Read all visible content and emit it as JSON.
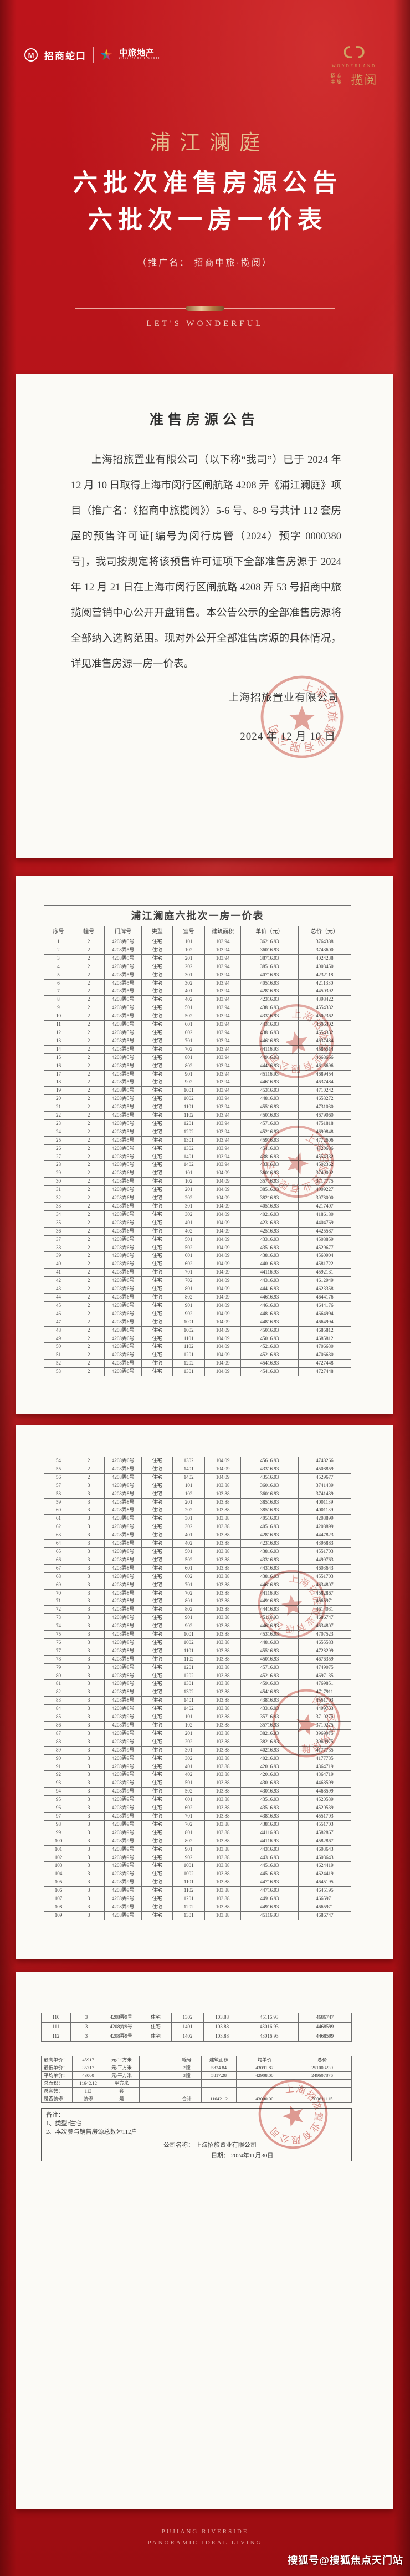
{
  "header": {
    "cm_mark": "M",
    "cm_name": "招商蛇口",
    "ctg_name": "中旅地产",
    "ctg_sub": "CTG REAL ESTATE",
    "right_wordmark": "WONDERLAND",
    "right_cn_a": "招商",
    "right_cn_b": "中旅",
    "right_name": "揽阅",
    "gold_color": "#cfa263"
  },
  "hero": {
    "project_name": "浦江澜庭",
    "line1": "六批次准售房源公告",
    "line2": "六批次一房一价表",
    "promo_note": "（推广名： 招商中旅·揽阅）",
    "slogan": "LET'S WONDERFUL",
    "gold_color": "#e5bd8e"
  },
  "announcement": {
    "title": "准售房源公告",
    "body": "上海招旅置业有限公司（以下称“我司”）已于 2024 年 12 月 10 日取得上海市闵行区闸航路 4208 弄《浦江澜庭》项目（推广名：《招商中旅揽阅》）5-6 号、8-9 号共计 112 套房屋的预售许可证[编号为闵行房管（2024）预字 0000380 号]，我司按规定将该预售许可证项下全部准售房源于 2024 年 12 月 21 日在上海市闵行区闸航路 4208 弄 53 号招商中旅揽阅营销中心公开开盘销售。本公告公示的全部准售房源将全部纳入选购范围。现对外公开全部准售房源的具体情况，详见准售房源一房一价表。",
    "signature": "上海招旅置业有限公司",
    "date": "2024 年 12 月 10 日"
  },
  "price_table": {
    "title": "浦江澜庭六批次一房一价表",
    "columns": [
      "序号",
      "幢号",
      "门牌号",
      "类型",
      "室号",
      "建筑面积",
      "单价（元）",
      "总价（元）"
    ],
    "rows": [
      [
        "1",
        "2",
        "4208弄5号",
        "住宅",
        "101",
        "103.94",
        "36216.93",
        "3764388"
      ],
      [
        "2",
        "2",
        "4208弄5号",
        "住宅",
        "102",
        "103.94",
        "36016.93",
        "3743600"
      ],
      [
        "3",
        "2",
        "4208弄5号",
        "住宅",
        "201",
        "103.94",
        "38716.93",
        "4024238"
      ],
      [
        "4",
        "2",
        "4208弄5号",
        "住宅",
        "202",
        "103.94",
        "38516.93",
        "4003450"
      ],
      [
        "5",
        "2",
        "4208弄5号",
        "住宅",
        "301",
        "103.94",
        "40716.93",
        "4232118"
      ],
      [
        "6",
        "2",
        "4208弄5号",
        "住宅",
        "302",
        "103.94",
        "40516.93",
        "4211330"
      ],
      [
        "7",
        "2",
        "4208弄5号",
        "住宅",
        "401",
        "103.94",
        "42816.93",
        "4450392"
      ],
      [
        "8",
        "2",
        "4208弄5号",
        "住宅",
        "402",
        "103.94",
        "42316.93",
        "4398422"
      ],
      [
        "9",
        "2",
        "4208弄5号",
        "住宅",
        "501",
        "103.94",
        "43816.93",
        "4554332"
      ],
      [
        "10",
        "2",
        "4208弄5号",
        "住宅",
        "502",
        "103.94",
        "43316.93",
        "4502362"
      ],
      [
        "11",
        "2",
        "4208弄5号",
        "住宅",
        "601",
        "103.94",
        "44316.93",
        "4606302"
      ],
      [
        "12",
        "2",
        "4208弄5号",
        "住宅",
        "602",
        "103.94",
        "43816.93",
        "4554332"
      ],
      [
        "13",
        "2",
        "4208弄5号",
        "住宅",
        "701",
        "103.94",
        "44616.93",
        "4637484"
      ],
      [
        "14",
        "2",
        "4208弄5号",
        "住宅",
        "702",
        "103.94",
        "44116.93",
        "4585514"
      ],
      [
        "15",
        "2",
        "4208弄5号",
        "住宅",
        "801",
        "103.94",
        "44916.93",
        "4668666"
      ],
      [
        "16",
        "2",
        "4208弄5号",
        "住宅",
        "802",
        "103.94",
        "44416.93",
        "4616696"
      ],
      [
        "17",
        "2",
        "4208弄5号",
        "住宅",
        "901",
        "103.94",
        "45116.93",
        "4689454"
      ],
      [
        "18",
        "2",
        "4208弄5号",
        "住宅",
        "902",
        "103.94",
        "44616.93",
        "4637484"
      ],
      [
        "19",
        "2",
        "4208弄5号",
        "住宅",
        "1001",
        "103.94",
        "45316.93",
        "4710242"
      ],
      [
        "20",
        "2",
        "4208弄5号",
        "住宅",
        "1002",
        "103.94",
        "44816.93",
        "4658272"
      ],
      [
        "21",
        "2",
        "4208弄5号",
        "住宅",
        "1101",
        "103.94",
        "45516.93",
        "4731030"
      ],
      [
        "22",
        "2",
        "4208弄5号",
        "住宅",
        "1102",
        "103.94",
        "45016.93",
        "4679060"
      ],
      [
        "23",
        "2",
        "4208弄5号",
        "住宅",
        "1201",
        "103.94",
        "45716.93",
        "4751818"
      ],
      [
        "24",
        "2",
        "4208弄5号",
        "住宅",
        "1202",
        "103.94",
        "45216.93",
        "4699848"
      ],
      [
        "25",
        "2",
        "4208弄5号",
        "住宅",
        "1301",
        "103.94",
        "45916.93",
        "4772606"
      ],
      [
        "26",
        "2",
        "4208弄5号",
        "住宅",
        "1302",
        "103.94",
        "45416.93",
        "4720636"
      ],
      [
        "27",
        "2",
        "4208弄5号",
        "住宅",
        "1401",
        "103.94",
        "43816.93",
        "4554332"
      ],
      [
        "28",
        "2",
        "4208弄5号",
        "住宅",
        "1402",
        "103.94",
        "43316.93",
        "4502362"
      ],
      [
        "29",
        "2",
        "4208弄6号",
        "住宅",
        "101",
        "104.09",
        "36016.93",
        "3749002"
      ],
      [
        "30",
        "2",
        "4208弄6号",
        "住宅",
        "102",
        "104.09",
        "35716.93",
        "3717775"
      ],
      [
        "31",
        "2",
        "4208弄6号",
        "住宅",
        "201",
        "104.09",
        "38516.93",
        "4009227"
      ],
      [
        "32",
        "2",
        "4208弄6号",
        "住宅",
        "202",
        "104.09",
        "38216.93",
        "3978000"
      ],
      [
        "33",
        "2",
        "4208弄6号",
        "住宅",
        "301",
        "104.09",
        "40516.93",
        "4217407"
      ],
      [
        "34",
        "2",
        "4208弄6号",
        "住宅",
        "302",
        "104.09",
        "40216.93",
        "4186180"
      ],
      [
        "35",
        "2",
        "4208弄6号",
        "住宅",
        "401",
        "104.09",
        "42316.93",
        "4404769"
      ],
      [
        "36",
        "2",
        "4208弄6号",
        "住宅",
        "402",
        "104.09",
        "42516.93",
        "4425587"
      ],
      [
        "37",
        "2",
        "4208弄6号",
        "住宅",
        "501",
        "104.09",
        "43316.93",
        "4508859"
      ],
      [
        "38",
        "2",
        "4208弄6号",
        "住宅",
        "502",
        "104.09",
        "43516.93",
        "4529677"
      ],
      [
        "39",
        "2",
        "4208弄6号",
        "住宅",
        "601",
        "104.09",
        "43816.93",
        "4560904"
      ],
      [
        "40",
        "2",
        "4208弄6号",
        "住宅",
        "602",
        "104.09",
        "44016.93",
        "4581722"
      ],
      [
        "41",
        "2",
        "4208弄6号",
        "住宅",
        "701",
        "104.09",
        "44116.93",
        "4592131"
      ],
      [
        "42",
        "2",
        "4208弄6号",
        "住宅",
        "702",
        "104.09",
        "44316.93",
        "4612949"
      ],
      [
        "43",
        "2",
        "4208弄6号",
        "住宅",
        "801",
        "104.09",
        "44416.93",
        "4623358"
      ],
      [
        "44",
        "2",
        "4208弄6号",
        "住宅",
        "802",
        "104.09",
        "44616.93",
        "4644176"
      ],
      [
        "45",
        "2",
        "4208弄6号",
        "住宅",
        "901",
        "104.09",
        "44616.93",
        "4644176"
      ],
      [
        "46",
        "2",
        "4208弄6号",
        "住宅",
        "902",
        "104.09",
        "44816.93",
        "4664994"
      ],
      [
        "47",
        "2",
        "4208弄6号",
        "住宅",
        "1001",
        "104.09",
        "44816.93",
        "4664994"
      ],
      [
        "48",
        "2",
        "4208弄6号",
        "住宅",
        "1002",
        "104.09",
        "45016.93",
        "4685812"
      ],
      [
        "49",
        "2",
        "4208弄6号",
        "住宅",
        "1101",
        "104.09",
        "45016.93",
        "4685812"
      ],
      [
        "50",
        "2",
        "4208弄6号",
        "住宅",
        "1102",
        "104.09",
        "45216.93",
        "4706630"
      ],
      [
        "51",
        "2",
        "4208弄6号",
        "住宅",
        "1201",
        "104.09",
        "45216.93",
        "4706630"
      ],
      [
        "52",
        "2",
        "4208弄6号",
        "住宅",
        "1202",
        "104.09",
        "45416.93",
        "4727448"
      ],
      [
        "53",
        "2",
        "4208弄6号",
        "住宅",
        "1301",
        "104.09",
        "45416.93",
        "4727448"
      ],
      [
        "54",
        "2",
        "4208弄6号",
        "住宅",
        "1302",
        "104.09",
        "45616.93",
        "4748266"
      ],
      [
        "55",
        "2",
        "4208弄6号",
        "住宅",
        "1401",
        "104.09",
        "43316.93",
        "4508859"
      ],
      [
        "56",
        "2",
        "4208弄6号",
        "住宅",
        "1402",
        "104.09",
        "43516.93",
        "4529677"
      ],
      [
        "57",
        "3",
        "4208弄8号",
        "住宅",
        "101",
        "103.88",
        "36016.93",
        "3741439"
      ],
      [
        "58",
        "3",
        "4208弄8号",
        "住宅",
        "102",
        "103.88",
        "36016.93",
        "3741439"
      ],
      [
        "59",
        "3",
        "4208弄8号",
        "住宅",
        "201",
        "103.88",
        "38516.93",
        "4001139"
      ],
      [
        "60",
        "3",
        "4208弄8号",
        "住宅",
        "202",
        "103.88",
        "38516.93",
        "4001139"
      ],
      [
        "61",
        "3",
        "4208弄8号",
        "住宅",
        "301",
        "103.88",
        "40516.93",
        "4208899"
      ],
      [
        "62",
        "3",
        "4208弄8号",
        "住宅",
        "302",
        "103.88",
        "40516.93",
        "4208899"
      ],
      [
        "63",
        "3",
        "4208弄8号",
        "住宅",
        "401",
        "103.88",
        "42816.93",
        "4447823"
      ],
      [
        "64",
        "3",
        "4208弄8号",
        "住宅",
        "402",
        "103.88",
        "42316.93",
        "4395883"
      ],
      [
        "65",
        "3",
        "4208弄8号",
        "住宅",
        "501",
        "103.88",
        "43816.93",
        "4551703"
      ],
      [
        "66",
        "3",
        "4208弄8号",
        "住宅",
        "502",
        "103.88",
        "43316.93",
        "4499763"
      ],
      [
        "67",
        "3",
        "4208弄8号",
        "住宅",
        "601",
        "103.88",
        "44316.93",
        "4603643"
      ],
      [
        "68",
        "3",
        "4208弄8号",
        "住宅",
        "602",
        "103.88",
        "43816.93",
        "4551703"
      ],
      [
        "69",
        "3",
        "4208弄8号",
        "住宅",
        "701",
        "103.88",
        "44616.93",
        "4634807"
      ],
      [
        "70",
        "3",
        "4208弄8号",
        "住宅",
        "702",
        "103.88",
        "44116.93",
        "4582867"
      ],
      [
        "71",
        "3",
        "4208弄8号",
        "住宅",
        "801",
        "103.88",
        "44916.93",
        "4665971"
      ],
      [
        "72",
        "3",
        "4208弄8号",
        "住宅",
        "802",
        "103.88",
        "44416.93",
        "4614031"
      ],
      [
        "73",
        "3",
        "4208弄8号",
        "住宅",
        "901",
        "103.88",
        "45116.93",
        "4686747"
      ],
      [
        "74",
        "3",
        "4208弄8号",
        "住宅",
        "902",
        "103.88",
        "44616.93",
        "4634807"
      ],
      [
        "75",
        "3",
        "4208弄8号",
        "住宅",
        "1001",
        "103.88",
        "45316.93",
        "4707523"
      ],
      [
        "76",
        "3",
        "4208弄8号",
        "住宅",
        "1002",
        "103.88",
        "44816.93",
        "4655583"
      ],
      [
        "77",
        "3",
        "4208弄8号",
        "住宅",
        "1101",
        "103.88",
        "45516.93",
        "4728299"
      ],
      [
        "78",
        "3",
        "4208弄8号",
        "住宅",
        "1102",
        "103.88",
        "45016.93",
        "4676359"
      ],
      [
        "79",
        "3",
        "4208弄8号",
        "住宅",
        "1201",
        "103.88",
        "45716.93",
        "4749075"
      ],
      [
        "80",
        "3",
        "4208弄8号",
        "住宅",
        "1202",
        "103.88",
        "45216.93",
        "4697135"
      ],
      [
        "81",
        "3",
        "4208弄8号",
        "住宅",
        "1301",
        "103.88",
        "45916.93",
        "4769851"
      ],
      [
        "82",
        "3",
        "4208弄8号",
        "住宅",
        "1302",
        "103.88",
        "45416.93",
        "4717911"
      ],
      [
        "83",
        "3",
        "4208弄8号",
        "住宅",
        "1401",
        "103.88",
        "43816.93",
        "4551703"
      ],
      [
        "84",
        "3",
        "4208弄8号",
        "住宅",
        "1402",
        "103.88",
        "43316.93",
        "4499763"
      ],
      [
        "85",
        "3",
        "4208弄9号",
        "住宅",
        "101",
        "103.88",
        "35716.93",
        "3710275"
      ],
      [
        "86",
        "3",
        "4208弄9号",
        "住宅",
        "102",
        "103.88",
        "35716.93",
        "3710275"
      ],
      [
        "87",
        "3",
        "4208弄9号",
        "住宅",
        "201",
        "103.88",
        "38216.93",
        "3969975"
      ],
      [
        "88",
        "3",
        "4208弄9号",
        "住宅",
        "202",
        "103.88",
        "38216.93",
        "3969975"
      ],
      [
        "89",
        "3",
        "4208弄9号",
        "住宅",
        "301",
        "103.88",
        "40216.93",
        "4177735"
      ],
      [
        "90",
        "3",
        "4208弄9号",
        "住宅",
        "302",
        "103.88",
        "40216.93",
        "4177735"
      ],
      [
        "91",
        "3",
        "4208弄9号",
        "住宅",
        "401",
        "103.88",
        "42016.93",
        "4364719"
      ],
      [
        "92",
        "3",
        "4208弄9号",
        "住宅",
        "402",
        "103.88",
        "42016.93",
        "4364719"
      ],
      [
        "93",
        "3",
        "4208弄9号",
        "住宅",
        "501",
        "103.88",
        "43016.93",
        "4468599"
      ],
      [
        "94",
        "3",
        "4208弄9号",
        "住宅",
        "502",
        "103.88",
        "43016.93",
        "4468599"
      ],
      [
        "95",
        "3",
        "4208弄9号",
        "住宅",
        "601",
        "103.88",
        "43516.93",
        "4520539"
      ],
      [
        "96",
        "3",
        "4208弄9号",
        "住宅",
        "602",
        "103.88",
        "43516.93",
        "4520539"
      ],
      [
        "97",
        "3",
        "4208弄9号",
        "住宅",
        "701",
        "103.88",
        "43816.93",
        "4551703"
      ],
      [
        "98",
        "3",
        "4208弄9号",
        "住宅",
        "702",
        "103.88",
        "43816.93",
        "4551703"
      ],
      [
        "99",
        "3",
        "4208弄9号",
        "住宅",
        "801",
        "103.88",
        "44116.93",
        "4582867"
      ],
      [
        "100",
        "3",
        "4208弄9号",
        "住宅",
        "802",
        "103.88",
        "44116.93",
        "4582867"
      ],
      [
        "101",
        "3",
        "4208弄9号",
        "住宅",
        "901",
        "103.88",
        "44316.93",
        "4603643"
      ],
      [
        "102",
        "3",
        "4208弄9号",
        "住宅",
        "902",
        "103.88",
        "44316.93",
        "4603643"
      ],
      [
        "103",
        "3",
        "4208弄9号",
        "住宅",
        "1001",
        "103.88",
        "44516.93",
        "4624419"
      ],
      [
        "104",
        "3",
        "4208弄9号",
        "住宅",
        "1002",
        "103.88",
        "44516.93",
        "4624419"
      ],
      [
        "105",
        "3",
        "4208弄9号",
        "住宅",
        "1101",
        "103.88",
        "44716.93",
        "4645195"
      ],
      [
        "106",
        "3",
        "4208弄9号",
        "住宅",
        "1102",
        "103.88",
        "44716.93",
        "4645195"
      ],
      [
        "107",
        "3",
        "4208弄9号",
        "住宅",
        "1201",
        "103.88",
        "44916.93",
        "4665971"
      ],
      [
        "108",
        "3",
        "4208弄9号",
        "住宅",
        "1202",
        "103.88",
        "44916.93",
        "4665971"
      ],
      [
        "109",
        "3",
        "4208弄9号",
        "住宅",
        "1301",
        "103.88",
        "45116.93",
        "4686747"
      ],
      [
        "110",
        "3",
        "4208弄9号",
        "住宅",
        "1302",
        "103.88",
        "45116.93",
        "4686747"
      ],
      [
        "111",
        "3",
        "4208弄9号",
        "住宅",
        "1401",
        "103.88",
        "43016.93",
        "4468599"
      ],
      [
        "112",
        "3",
        "4208弄9号",
        "住宅",
        "1402",
        "103.88",
        "43016.93",
        "4468599"
      ]
    ]
  },
  "summary": {
    "rows": [
      [
        "最高单价：",
        "45917",
        "元/平方米",
        "",
        "幢号",
        "建筑面积",
        "均单价",
        "总价"
      ],
      [
        "最低单价：",
        "35717",
        "元/平方米",
        "",
        "2幢",
        "5824.84",
        "43091.87",
        "251003239"
      ],
      [
        "平均单价：",
        "43000",
        "元/平方米",
        "",
        "3幢",
        "5817.28",
        "42908.00",
        "249607876"
      ],
      [
        "总面积：",
        "11642.12",
        "平方米",
        "",
        "",
        "",
        "",
        ""
      ],
      [
        "总套数：",
        "112",
        "套",
        "",
        "",
        "",
        "",
        ""
      ],
      [
        "是否装修：",
        "装修",
        "是",
        "",
        "合计",
        "11642.12",
        "43000.00",
        "500611115"
      ]
    ]
  },
  "notes": {
    "label": "备注：",
    "items": [
      "1、类型:住宅",
      "2、本次参与销售房源总数为112户"
    ],
    "company_line": "公司名称： 上海招旅置业有限公司",
    "date_line": "日期： 2024年11月30日"
  },
  "stamps": {
    "company_seal_text": "上海招旅置业有限公司",
    "gov_seal_text": "闵行区住房保障",
    "seal_color": "#c0392b"
  },
  "footer": {
    "en_line1": "PUJIANG RIVERSIDE",
    "en_line2": "PANORAMIC IDEAL LIVING",
    "watermark": "搜狐号@搜狐焦点天门站"
  }
}
